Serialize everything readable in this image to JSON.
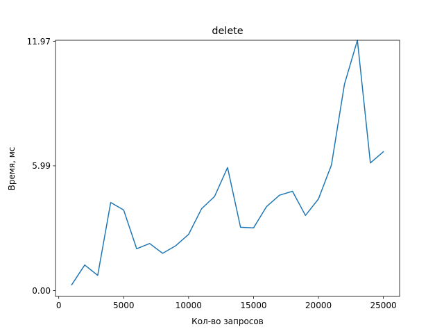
{
  "chart_data": {
    "type": "line",
    "title": "delete",
    "xlabel": "Кол-во запросов",
    "ylabel": "Время, мс",
    "xlim": [
      -250,
      26250
    ],
    "ylim": [
      -0.28,
      12.02
    ],
    "xticks": [
      0,
      5000,
      10000,
      15000,
      20000,
      25000
    ],
    "xtick_labels": [
      "0",
      "5000",
      "10000",
      "15000",
      "20000",
      "25000"
    ],
    "yticks": [
      0.0,
      5.99,
      11.97
    ],
    "ytick_labels": [
      "0.00",
      "5.99",
      "11.97"
    ],
    "grid": false,
    "series": [
      {
        "color": "#1f77b4",
        "x": [
          1000,
          2000,
          3000,
          4000,
          5000,
          6000,
          7000,
          8000,
          9000,
          10000,
          11000,
          12000,
          13000,
          14000,
          15000,
          16000,
          17000,
          18000,
          19000,
          20000,
          21000,
          22000,
          23000,
          24000,
          25000
        ],
        "y": [
          0.28,
          1.23,
          0.73,
          4.23,
          3.87,
          2.01,
          2.26,
          1.79,
          2.15,
          2.7,
          3.93,
          4.52,
          5.91,
          3.04,
          3.01,
          4.03,
          4.58,
          4.77,
          3.61,
          4.4,
          6.03,
          9.9,
          12.02,
          6.13,
          6.67
        ]
      }
    ]
  }
}
